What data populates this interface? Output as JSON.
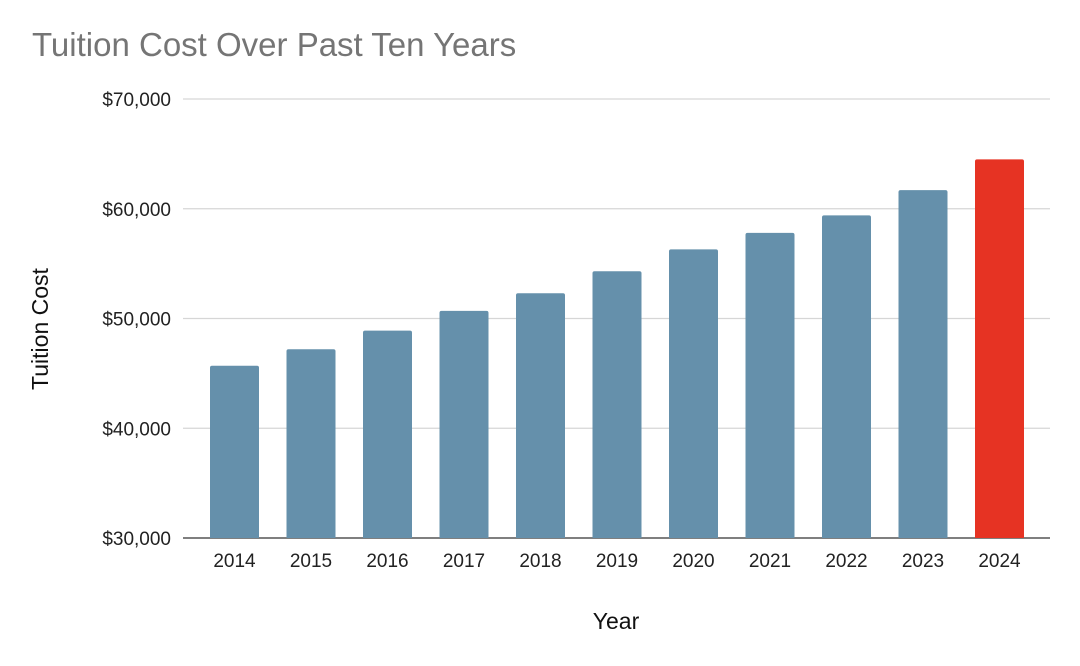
{
  "chart_data": {
    "type": "bar",
    "title": "Tuition Cost Over Past Ten Years",
    "xlabel": "Year",
    "ylabel": "Tuition Cost",
    "categories": [
      "2014",
      "2015",
      "2016",
      "2017",
      "2018",
      "2019",
      "2020",
      "2021",
      "2022",
      "2023",
      "2024"
    ],
    "values": [
      45700,
      47200,
      48900,
      50700,
      52300,
      54300,
      56300,
      57800,
      59400,
      61700,
      64500
    ],
    "ylim": [
      30000,
      70000
    ],
    "yticks": [
      30000,
      40000,
      50000,
      60000,
      70000
    ],
    "ytick_labels": [
      "$30,000",
      "$40,000",
      "$50,000",
      "$60,000",
      "$70,000"
    ],
    "grid": true,
    "colors": {
      "bar": "#6590ab",
      "highlight": "#e63323",
      "highlight_category": "2024"
    }
  }
}
